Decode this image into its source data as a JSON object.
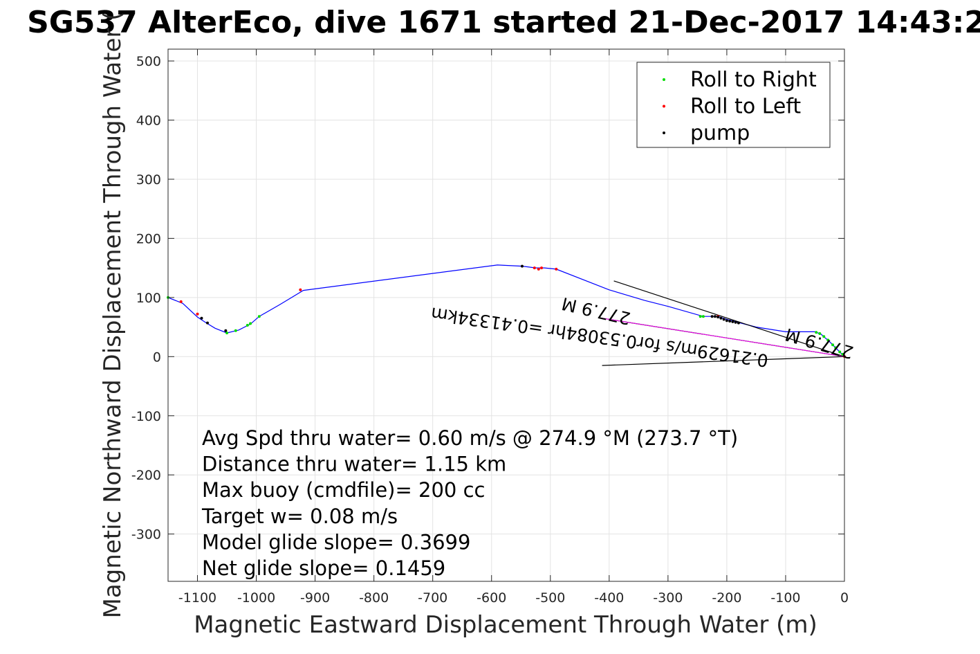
{
  "chart_data": {
    "type": "scatter",
    "title": "SG537 AlterEco, dive 1671 started 21-Dec-2017 14:43:2",
    "xlabel": "Magnetic Eastward Displacement Through Water (m)",
    "ylabel": "Magnetic Northward Displacement Through Water (",
    "xlim": [
      -1150,
      0
    ],
    "ylim": [
      -380,
      520
    ],
    "xticks": [
      -1100,
      -1000,
      -900,
      -800,
      -700,
      -600,
      -500,
      -400,
      -300,
      -200,
      -100,
      0
    ],
    "yticks": [
      -300,
      -200,
      -100,
      0,
      100,
      200,
      300,
      400,
      500
    ],
    "grid": true,
    "legend_position": "top-right",
    "legend": [
      {
        "label": "Roll to Right",
        "color": "#00dd00"
      },
      {
        "label": "Roll to Left",
        "color": "#ff0000"
      },
      {
        "label": "pump",
        "color": "#000000"
      }
    ],
    "track_color": "#0000ff",
    "track": {
      "x": [
        0,
        -10,
        -25,
        -40,
        -50,
        -60,
        -100,
        -150,
        -200,
        -215,
        -240,
        -300,
        -340,
        -400,
        -490,
        -510,
        -525,
        -548,
        -590,
        -920,
        -940,
        -960,
        -995,
        -1010,
        -1030,
        -1050,
        -1070,
        -1085,
        -1100,
        -1125,
        -1150
      ],
      "y": [
        0,
        10,
        25,
        38,
        42,
        42,
        42,
        50,
        63,
        68,
        68,
        85,
        95,
        113,
        148,
        150,
        150,
        153,
        155,
        112,
        100,
        88,
        68,
        55,
        45,
        40,
        48,
        57,
        67,
        90,
        100
      ]
    },
    "roll_right": {
      "x": [
        -3,
        -8,
        -15,
        -20,
        -28,
        -35,
        -42,
        -48,
        -245,
        -240,
        -1050,
        -1035,
        -1015,
        -1010,
        -995,
        -1150
      ],
      "y": [
        4,
        8,
        15,
        20,
        28,
        34,
        39,
        41,
        68,
        68,
        40,
        44,
        53,
        56,
        68,
        100
      ]
    },
    "roll_left": {
      "x": [
        0,
        -215,
        -520,
        -527,
        -515,
        -490,
        -1128,
        -1100,
        -925
      ],
      "y": [
        0,
        68,
        148,
        150,
        150,
        148,
        93,
        72,
        113
      ]
    },
    "pump": {
      "x": [
        -180,
        -185,
        -190,
        -195,
        -200,
        -205,
        -210,
        -215,
        -220,
        -225,
        -548,
        -1093,
        -1083,
        -1052
      ],
      "y": [
        57,
        58,
        59,
        60,
        61,
        63,
        65,
        67,
        68,
        68,
        153,
        65,
        57,
        44
      ]
    },
    "current_lines": {
      "color": "#000000",
      "segments": [
        {
          "x": [
            0,
            -392
          ],
          "y": [
            0,
            128
          ]
        },
        {
          "x": [
            0,
            -412
          ],
          "y": [
            0,
            -15
          ]
        },
        {
          "x": [
            0,
            -412
          ],
          "y": [
            0,
            65
          ]
        }
      ]
    },
    "model_line": {
      "color": "#ff00ff",
      "x": [
        0,
        -412
      ],
      "y": [
        0,
        65
      ]
    },
    "annotations": [
      "Avg Spd thru water=  0.60 m/s @ 274.9 °M (273.7 °T)",
      "Distance thru water=  1.15 km",
      "Max buoy (cmdfile)= 200 cc",
      "Target w= 0.08 m/s",
      "Model glide slope= 0.3699",
      "Net glide slope= 0.1459"
    ],
    "rotated_labels": [
      {
        "text": "0.21629m/s for0.53084hr =0.41334km",
        "x": -415,
        "y": 43
      },
      {
        "text": "277.9 M",
        "x": -420,
        "y": 87
      },
      {
        "text": "277.9 M",
        "x": -40,
        "y": 32
      }
    ]
  }
}
